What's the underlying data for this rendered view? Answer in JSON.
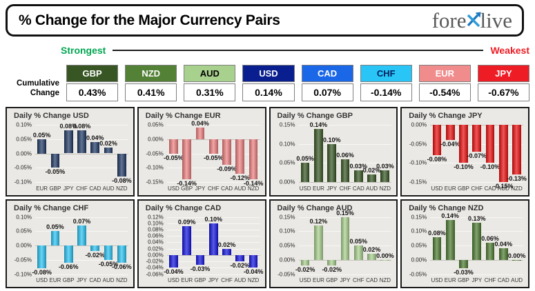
{
  "header": {
    "title": "% Change for the Major Currency Pairs",
    "logo": {
      "part1": "fore",
      "part2": "live"
    }
  },
  "scale": {
    "strongest_label": "Strongest",
    "weakest_label": "Weakest",
    "strongest_color": "#00A651",
    "weakest_color": "#ED1C24"
  },
  "cumulative": {
    "label_line1": "Cumulative",
    "label_line2": "Change",
    "items": [
      {
        "code": "GBP",
        "value": "0.43%",
        "bg": "#375623",
        "fg": "#FFFFFF"
      },
      {
        "code": "NZD",
        "value": "0.41%",
        "bg": "#538135",
        "fg": "#FFFFFF"
      },
      {
        "code": "AUD",
        "value": "0.31%",
        "bg": "#A9D18E",
        "fg": "#000000"
      },
      {
        "code": "USD",
        "value": "0.14%",
        "bg": "#0A1F8F",
        "fg": "#FFFFFF"
      },
      {
        "code": "CAD",
        "value": "0.07%",
        "bg": "#1A67E8",
        "fg": "#FFFFFF"
      },
      {
        "code": "CHF",
        "value": "-0.14%",
        "bg": "#29C5F6",
        "fg": "#002060"
      },
      {
        "code": "EUR",
        "value": "-0.54%",
        "bg": "#F18C8C",
        "fg": "#FFFFFF"
      },
      {
        "code": "JPY",
        "value": "-0.67%",
        "bg": "#EE1C25",
        "fg": "#FFFFFF"
      }
    ]
  },
  "chart_data": [
    {
      "type": "bar",
      "title": "Daily % Change USD",
      "color": "#1F3864",
      "categories": [
        "EUR",
        "GBP",
        "JPY",
        "CHF",
        "CAD",
        "AUD",
        "NZD"
      ],
      "values": [
        0.05,
        -0.05,
        0.08,
        0.08,
        0.04,
        0.02,
        -0.08
      ],
      "labels": [
        "0.05%",
        "-0.05%",
        "0.08%",
        "0.08%",
        "0.04%",
        "0.02%",
        "-0.08%"
      ],
      "ylim": [
        -0.1,
        0.1
      ],
      "ytick": 0.05
    },
    {
      "type": "bar",
      "title": "Daily % Change EUR",
      "color": "#F08080",
      "categories": [
        "USD",
        "GBP",
        "JPY",
        "CHF",
        "CAD",
        "AUD",
        "NZD"
      ],
      "values": [
        -0.05,
        -0.14,
        0.04,
        -0.05,
        -0.09,
        -0.12,
        -0.14
      ],
      "labels": [
        "-0.05%",
        "-0.14%",
        "0.04%",
        "-0.05%",
        "-0.09%",
        "-0.12%",
        "-0.14%"
      ],
      "ylim": [
        -0.15,
        0.05
      ],
      "ytick": 0.05
    },
    {
      "type": "bar",
      "title": "Daily % Change GBP",
      "color": "#375623",
      "categories": [
        "USD",
        "EUR",
        "JPY",
        "CHF",
        "CAD",
        "AUD",
        "NZD"
      ],
      "values": [
        0.05,
        0.14,
        0.1,
        0.06,
        0.03,
        0.02,
        0.03
      ],
      "labels": [
        "0.05%",
        "0.14%",
        "0.10%",
        "0.06%",
        "0.03%",
        "0.02%",
        "0.03%"
      ],
      "ylim": [
        0.0,
        0.15
      ],
      "ytick": 0.05
    },
    {
      "type": "bar",
      "title": "Daily % Change JPY",
      "color": "#ED0D0D",
      "categories": [
        "USD",
        "EUR",
        "GBP",
        "CHF",
        "CAD",
        "AUD",
        "NZD"
      ],
      "values": [
        -0.08,
        -0.04,
        -0.1,
        -0.07,
        -0.1,
        -0.15,
        -0.13
      ],
      "labels": [
        "-0.08%",
        "-0.04%",
        "-0.10%",
        "-0.07%",
        "-0.10%",
        "-0.15%",
        "-0.13%"
      ],
      "ylim": [
        -0.15,
        0.0
      ],
      "ytick": 0.05
    },
    {
      "type": "bar",
      "title": "Daily % Change CHF",
      "color": "#29C5F6",
      "categories": [
        "USD",
        "EUR",
        "GBP",
        "JPY",
        "CAD",
        "AUD",
        "NZD"
      ],
      "values": [
        -0.08,
        0.05,
        -0.06,
        0.07,
        -0.02,
        -0.05,
        -0.06
      ],
      "labels": [
        "-0.08%",
        "0.05%",
        "-0.06%",
        "0.07%",
        "-0.02%",
        "-0.05%",
        "-0.06%"
      ],
      "ylim": [
        -0.1,
        0.1
      ],
      "ytick": 0.05
    },
    {
      "type": "bar",
      "title": "Daily % Change CAD",
      "color": "#1212E0",
      "categories": [
        "USD",
        "EUR",
        "GBP",
        "JPY",
        "CHF",
        "AUD",
        "NZD"
      ],
      "values": [
        -0.04,
        0.09,
        -0.03,
        0.1,
        0.02,
        -0.02,
        -0.04
      ],
      "labels": [
        "-0.04%",
        "0.09%",
        "-0.03%",
        "0.10%",
        "0.02%",
        "-0.02%",
        "-0.04%"
      ],
      "ylim": [
        -0.06,
        0.12
      ],
      "ytick": 0.02
    },
    {
      "type": "bar",
      "title": "Daily % Change AUD",
      "color": "#A9D18E",
      "categories": [
        "USD",
        "EUR",
        "GBP",
        "JPY",
        "CHF",
        "CAD",
        "NZD"
      ],
      "values": [
        -0.02,
        0.12,
        -0.02,
        0.15,
        0.05,
        0.02,
        0.0
      ],
      "labels": [
        "-0.02%",
        "0.12%",
        "-0.02%",
        "0.15%",
        "0.05%",
        "0.02%",
        "0.00%"
      ],
      "ylim": [
        -0.05,
        0.15
      ],
      "ytick": 0.05
    },
    {
      "type": "bar",
      "title": "Daily % Change NZD",
      "color": "#4E7C31",
      "categories": [
        "USD",
        "EUR",
        "GBP",
        "JPY",
        "CHF",
        "CAD",
        "AUD"
      ],
      "values": [
        0.08,
        0.14,
        -0.03,
        0.13,
        0.06,
        0.04,
        0.0
      ],
      "labels": [
        "0.08%",
        "0.14%",
        "-0.03%",
        "0.13%",
        "0.06%",
        "0.04%",
        "0.00%"
      ],
      "ylim": [
        -0.05,
        0.15
      ],
      "ytick": 0.05
    }
  ]
}
